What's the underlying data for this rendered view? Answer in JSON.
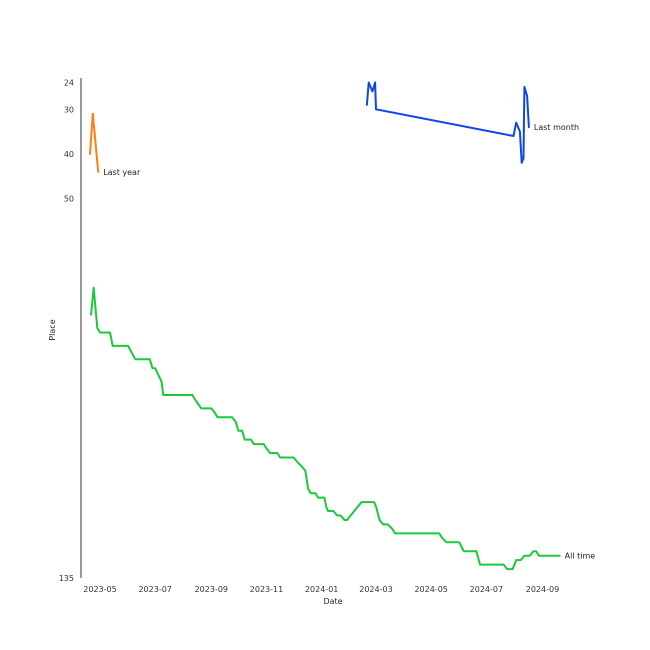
{
  "chart_data": {
    "type": "line",
    "xlabel": "Date",
    "ylabel": "Place",
    "x_ticks": [
      "2023-05",
      "2023-07",
      "2023-09",
      "2023-11",
      "2024-01",
      "2024-03",
      "2024-05",
      "2024-07",
      "2024-09"
    ],
    "y_ticks": [
      24,
      30,
      40,
      50,
      135
    ],
    "y_inverted": true,
    "xlim": [
      "2023-04-10",
      "2024-10-18"
    ],
    "ylim": [
      135,
      23
    ],
    "grid": false,
    "series": [
      {
        "name": "Last year",
        "color": "#ff7f0e",
        "points": [
          [
            "2023-04-20",
            40
          ],
          [
            "2023-04-23",
            31
          ],
          [
            "2023-04-29",
            44
          ]
        ]
      },
      {
        "name": "Last month",
        "color": "#1046e8",
        "points": [
          [
            "2024-02-20",
            29
          ],
          [
            "2024-02-22",
            24
          ],
          [
            "2024-02-26",
            26
          ],
          [
            "2024-02-29",
            24
          ],
          [
            "2024-03-01",
            30
          ],
          [
            "2024-07-31",
            36
          ],
          [
            "2024-08-03",
            33
          ],
          [
            "2024-08-07",
            35
          ],
          [
            "2024-08-09",
            42
          ],
          [
            "2024-08-11",
            41
          ],
          [
            "2024-08-12",
            25
          ],
          [
            "2024-08-15",
            27
          ],
          [
            "2024-08-17",
            34
          ]
        ]
      },
      {
        "name": "All time",
        "color": "#1ec83c",
        "points": [
          [
            "2023-04-21",
            76
          ],
          [
            "2023-04-24",
            70
          ],
          [
            "2023-04-28",
            79
          ],
          [
            "2023-05-01",
            80
          ],
          [
            "2023-05-12",
            80
          ],
          [
            "2023-05-15",
            83
          ],
          [
            "2023-06-01",
            83
          ],
          [
            "2023-06-09",
            86
          ],
          [
            "2023-06-25",
            86
          ],
          [
            "2023-06-28",
            88
          ],
          [
            "2023-07-01",
            88
          ],
          [
            "2023-07-08",
            91
          ],
          [
            "2023-07-10",
            94
          ],
          [
            "2023-08-11",
            94
          ],
          [
            "2023-08-14",
            95
          ],
          [
            "2023-08-21",
            97
          ],
          [
            "2023-09-01",
            97
          ],
          [
            "2023-09-05",
            98
          ],
          [
            "2023-09-08",
            99
          ],
          [
            "2023-09-24",
            99
          ],
          [
            "2023-09-28",
            100
          ],
          [
            "2023-10-01",
            102
          ],
          [
            "2023-10-05",
            102
          ],
          [
            "2023-10-08",
            104
          ],
          [
            "2023-10-15",
            104
          ],
          [
            "2023-10-18",
            105
          ],
          [
            "2023-10-29",
            105
          ],
          [
            "2023-11-01",
            106
          ],
          [
            "2023-11-05",
            107
          ],
          [
            "2023-11-13",
            107
          ],
          [
            "2023-11-16",
            108
          ],
          [
            "2023-12-01",
            108
          ],
          [
            "2023-12-05",
            109
          ],
          [
            "2023-12-10",
            110
          ],
          [
            "2023-12-14",
            111
          ],
          [
            "2023-12-17",
            115
          ],
          [
            "2023-12-20",
            116
          ],
          [
            "2023-12-25",
            116
          ],
          [
            "2023-12-28",
            117
          ],
          [
            "2024-01-04",
            117
          ],
          [
            "2024-01-06",
            119
          ],
          [
            "2024-01-08",
            120
          ],
          [
            "2024-01-14",
            120
          ],
          [
            "2024-01-18",
            121
          ],
          [
            "2024-01-22",
            121
          ],
          [
            "2024-01-26",
            122
          ],
          [
            "2024-01-29",
            122
          ],
          [
            "2024-02-14",
            118
          ],
          [
            "2024-02-28",
            118
          ],
          [
            "2024-03-01",
            119
          ],
          [
            "2024-03-05",
            122
          ],
          [
            "2024-03-09",
            123
          ],
          [
            "2024-03-14",
            123
          ],
          [
            "2024-03-19",
            124
          ],
          [
            "2024-03-22",
            125
          ],
          [
            "2024-04-01",
            125
          ],
          [
            "2024-04-20",
            125
          ],
          [
            "2024-04-24",
            125
          ],
          [
            "2024-05-10",
            125
          ],
          [
            "2024-05-13",
            126
          ],
          [
            "2024-05-18",
            127
          ],
          [
            "2024-06-01",
            127
          ],
          [
            "2024-06-06",
            129
          ],
          [
            "2024-06-20",
            129
          ],
          [
            "2024-06-24",
            132
          ],
          [
            "2024-07-10",
            132
          ],
          [
            "2024-07-20",
            132
          ],
          [
            "2024-07-24",
            133
          ],
          [
            "2024-07-30",
            133
          ],
          [
            "2024-08-03",
            131
          ],
          [
            "2024-08-08",
            131
          ],
          [
            "2024-08-12",
            130
          ],
          [
            "2024-08-18",
            130
          ],
          [
            "2024-08-22",
            129
          ],
          [
            "2024-08-25",
            129
          ],
          [
            "2024-08-28",
            130
          ],
          [
            "2024-09-10",
            130
          ],
          [
            "2024-09-20",
            130
          ]
        ]
      }
    ]
  }
}
